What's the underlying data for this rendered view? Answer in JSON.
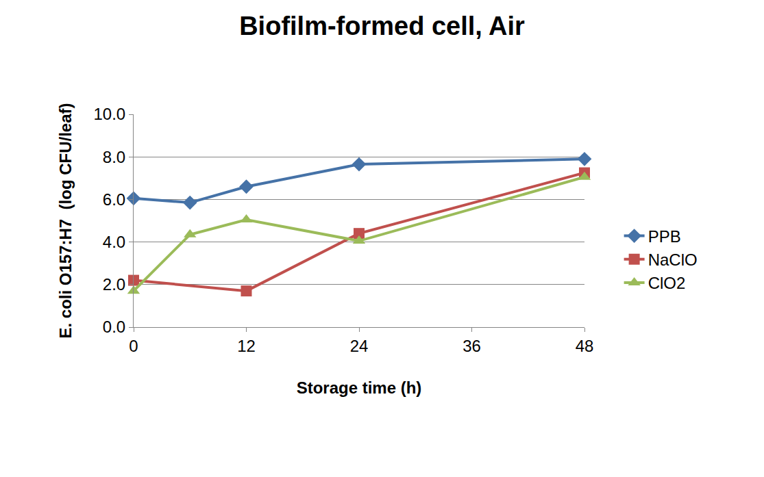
{
  "chart_data": {
    "type": "line",
    "title": "Biofilm-formed cell, Air",
    "x_label": "Storage time (h)",
    "y_label": "E. coli O157:H7  (log CFU/leaf)",
    "xlim": [
      0,
      48
    ],
    "xticks": [
      0,
      12,
      24,
      36,
      48
    ],
    "ylim": [
      0,
      10
    ],
    "yticks": [
      {
        "value": 0,
        "label": "0.0"
      },
      {
        "value": 2,
        "label": "2.0"
      },
      {
        "value": 4,
        "label": "4.0"
      },
      {
        "value": 6,
        "label": "6.0"
      },
      {
        "value": 8,
        "label": "8.0"
      },
      {
        "value": 10,
        "label": "10.0"
      }
    ],
    "grid": true,
    "legend": "right",
    "series": [
      {
        "name": "PPB",
        "color": "#4572a7",
        "marker": "diamond",
        "x": [
          0,
          6,
          12,
          24,
          48
        ],
        "values": [
          6.05,
          5.85,
          6.6,
          7.65,
          7.9
        ]
      },
      {
        "name": "NaClO",
        "color": "#c0504d",
        "marker": "square",
        "x": [
          0,
          12,
          24,
          48
        ],
        "values": [
          2.2,
          1.7,
          4.4,
          7.25
        ]
      },
      {
        "name": "ClO2",
        "color": "#9bbb59",
        "marker": "triangle-up",
        "x": [
          0,
          6,
          12,
          24,
          48
        ],
        "values": [
          1.7,
          4.35,
          5.05,
          4.05,
          7.05
        ]
      }
    ]
  }
}
